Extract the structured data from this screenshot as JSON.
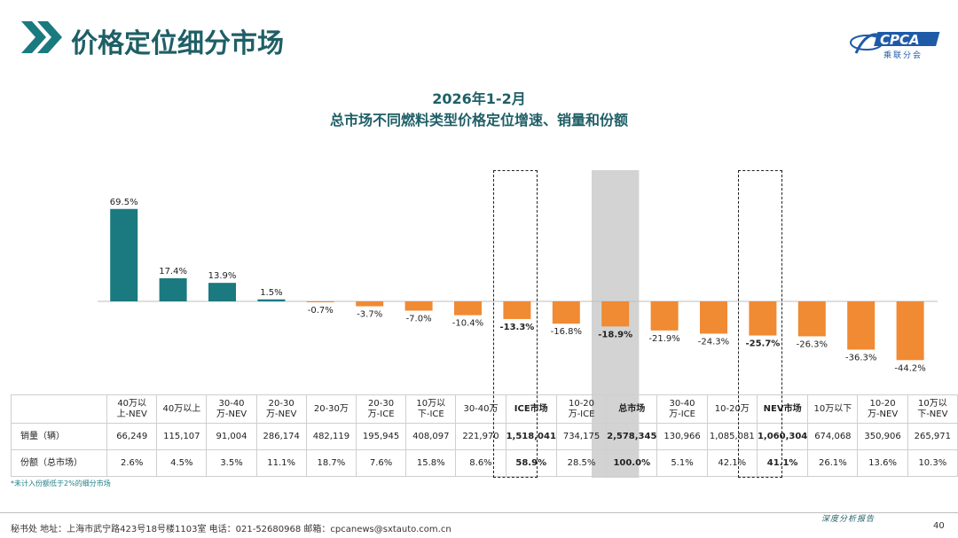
{
  "header": {
    "title": "价格定位细分市场",
    "logo_text": "CPCA",
    "logo_sub": "乘联分会"
  },
  "chart_titles": {
    "line1": "2026年1-2月",
    "line2": "总市场不同燃料类型价格定位增速、销量和份额"
  },
  "colors": {
    "nev": "#1a7a80",
    "ice": "#f08a33",
    "title": "#1f5f66",
    "highlight": "#d3d3d3"
  },
  "chart_data": {
    "type": "bar",
    "categories": [
      "40万以上-NEV",
      "40万以上",
      "30-40万-NEV",
      "20-30万-NEV",
      "20-30万",
      "20-30万-ICE",
      "10万以下-ICE",
      "30-40万",
      "ICE市场",
      "10-20万-ICE",
      "总市场",
      "30-40万-ICE",
      "10-20万",
      "NEV市场",
      "10万以下",
      "10-20万-NEV",
      "10万以下-NEV"
    ],
    "values": [
      69.5,
      17.4,
      13.9,
      1.5,
      -0.7,
      -3.7,
      -7.0,
      -10.4,
      -13.3,
      -16.8,
      -18.9,
      -21.9,
      -24.3,
      -25.7,
      -26.3,
      -36.3,
      -44.2
    ],
    "labels": [
      "69.5%",
      "17.4%",
      "13.9%",
      "1.5%",
      "-0.7%",
      "-3.7%",
      "-7.0%",
      "-10.4%",
      "-13.3%",
      "-16.8%",
      "-18.9%",
      "-21.9%",
      "-24.3%",
      "-25.7%",
      "-26.3%",
      "-36.3%",
      "-44.2%"
    ],
    "bold_labels": [
      8,
      10,
      13
    ],
    "ylabel": "",
    "xlabel": ""
  },
  "table": {
    "headers": [
      "40万以\n上-NEV",
      "40万以上",
      "30-40\n万-NEV",
      "20-30\n万-NEV",
      "20-30万",
      "20-30\n万-ICE",
      "10万以\n下-ICE",
      "30-40万",
      "ICE市场",
      "10-20\n万-ICE",
      "总市场",
      "30-40\n万-ICE",
      "10-20万",
      "NEV市场",
      "10万以下",
      "10-20\n万-NEV",
      "10万以\n下-NEV"
    ],
    "bold_cols": [
      8,
      10,
      13
    ],
    "rows": [
      {
        "label": "销量（辆）",
        "cells": [
          "66,249",
          "115,107",
          "91,004",
          "286,174",
          "482,119",
          "195,945",
          "408,097",
          "221,970",
          "1,518,041",
          "734,175",
          "2,578,345",
          "130,966",
          "1,085,081",
          "1,060,304",
          "674,068",
          "350,906",
          "265,971"
        ]
      },
      {
        "label": "份额（总市场）",
        "cells": [
          "2.6%",
          "4.5%",
          "3.5%",
          "11.1%",
          "18.7%",
          "7.6%",
          "15.8%",
          "8.6%",
          "58.9%",
          "28.5%",
          "100.0%",
          "5.1%",
          "42.1%",
          "41.1%",
          "26.1%",
          "13.6%",
          "10.3%"
        ]
      }
    ]
  },
  "footnote": "*未计入份额低于2%的细分市场",
  "footer": {
    "text": "秘书处   地址：上海市武宁路423号18号楼1103室   电话：021-52680968   邮箱：cpcanews@sxtauto.com.cn",
    "deep": "深度分析报告",
    "page": "40"
  }
}
